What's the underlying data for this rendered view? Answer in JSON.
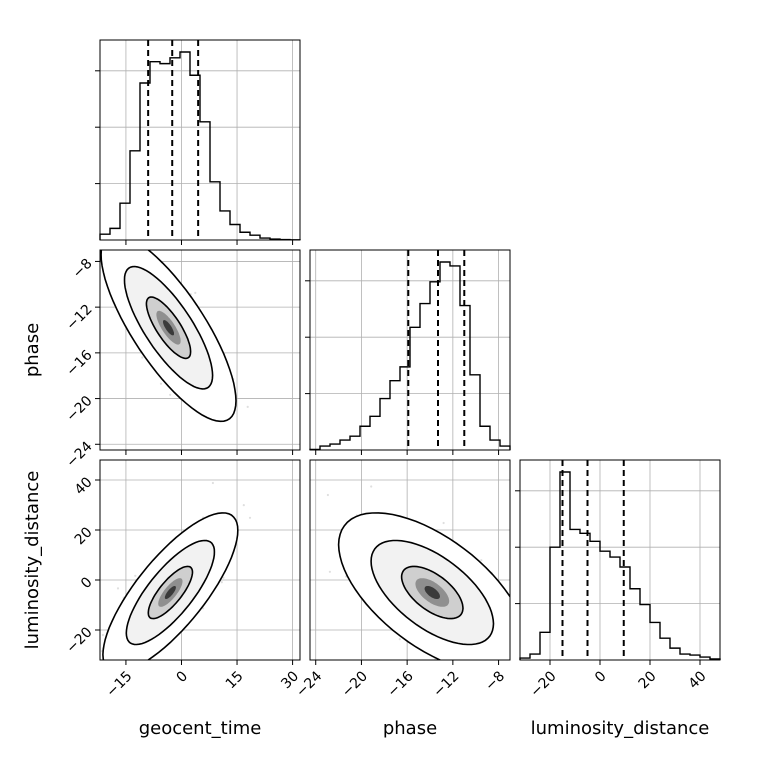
{
  "chart_data": {
    "type": "corner",
    "parameters": [
      "geocent_time",
      "phase",
      "luminosity_distance"
    ],
    "axes": {
      "geocent_time": {
        "label": "geocent_time",
        "range": [
          -22,
          32
        ],
        "ticks": [
          -15,
          0,
          15,
          30
        ],
        "tick_labels": [
          "−15",
          "0",
          "15",
          "30"
        ]
      },
      "phase": {
        "label": "phase",
        "range": [
          -24.5,
          -7.0
        ],
        "ticks": [
          -24,
          -20,
          -16,
          -12,
          -8
        ],
        "tick_labels": [
          "−24",
          "−20",
          "−16",
          "−12",
          "−8"
        ]
      },
      "luminosity_distance": {
        "label": "luminosity_distance",
        "range": [
          -32,
          48
        ],
        "ticks": [
          -20,
          0,
          20,
          40
        ],
        "tick_labels": [
          "−20",
          "0",
          "20",
          "40"
        ]
      }
    },
    "histograms": [
      {
        "parameter": "geocent_time",
        "bin_edges": [
          -22,
          -19.3,
          -16.6,
          -13.9,
          -11.2,
          -8.5,
          -5.8,
          -3.1,
          -0.4,
          2.3,
          5.0,
          7.7,
          10.4,
          13.1,
          15.8,
          18.5,
          21.2,
          23.9,
          26.6,
          29.3,
          32
        ],
        "counts": [
          0.03,
          0.06,
          0.19,
          0.46,
          0.81,
          0.92,
          0.91,
          0.94,
          0.97,
          0.85,
          0.61,
          0.3,
          0.15,
          0.08,
          0.04,
          0.025,
          0.01,
          0.005,
          0.002,
          0.001
        ],
        "quantiles": [
          -9.0,
          -2.5,
          4.5
        ]
      },
      {
        "parameter": "phase",
        "bin_edges": [
          -24.5,
          -23.625,
          -22.75,
          -21.875,
          -21.0,
          -20.125,
          -19.25,
          -18.375,
          -17.5,
          -16.625,
          -15.75,
          -14.875,
          -14.0,
          -13.125,
          -12.25,
          -11.375,
          -10.5,
          -9.625,
          -8.75,
          -7.875,
          -7.0
        ],
        "counts": [
          0.003,
          0.02,
          0.03,
          0.05,
          0.07,
          0.12,
          0.17,
          0.26,
          0.35,
          0.42,
          0.62,
          0.74,
          0.85,
          0.95,
          0.93,
          0.73,
          0.38,
          0.12,
          0.05,
          0.02
        ],
        "quantiles": [
          -15.9,
          -13.3,
          -11.0
        ]
      },
      {
        "parameter": "luminosity_distance",
        "bin_edges": [
          -32,
          -28,
          -24,
          -20,
          -16,
          -12,
          -8,
          -4,
          0,
          4,
          8,
          12,
          16,
          20,
          24,
          28,
          32,
          36,
          40,
          44,
          48
        ],
        "counts": [
          0.01,
          0.03,
          0.14,
          0.57,
          0.95,
          0.66,
          0.64,
          0.6,
          0.55,
          0.52,
          0.47,
          0.36,
          0.28,
          0.19,
          0.11,
          0.06,
          0.03,
          0.025,
          0.015,
          0.005
        ],
        "quantiles": [
          -15.0,
          -5.0,
          9.5
        ]
      }
    ],
    "pairs": [
      {
        "x": "geocent_time",
        "y": "phase",
        "mean": [
          -3.5,
          -13.8
        ],
        "std": [
          6.0,
          2.7
        ],
        "corr": -0.78
      },
      {
        "x": "geocent_time",
        "y": "luminosity_distance",
        "mean": [
          -3.0,
          -5.0
        ],
        "std": [
          6.0,
          10.5
        ],
        "corr": 0.78
      },
      {
        "x": "phase",
        "y": "luminosity_distance",
        "mean": [
          -13.8,
          -5.0
        ],
        "std": [
          2.7,
          10.5
        ],
        "corr": -0.6
      }
    ],
    "grid": true,
    "contour_levels": [
      0.39,
      0.86,
      0.99
    ]
  }
}
